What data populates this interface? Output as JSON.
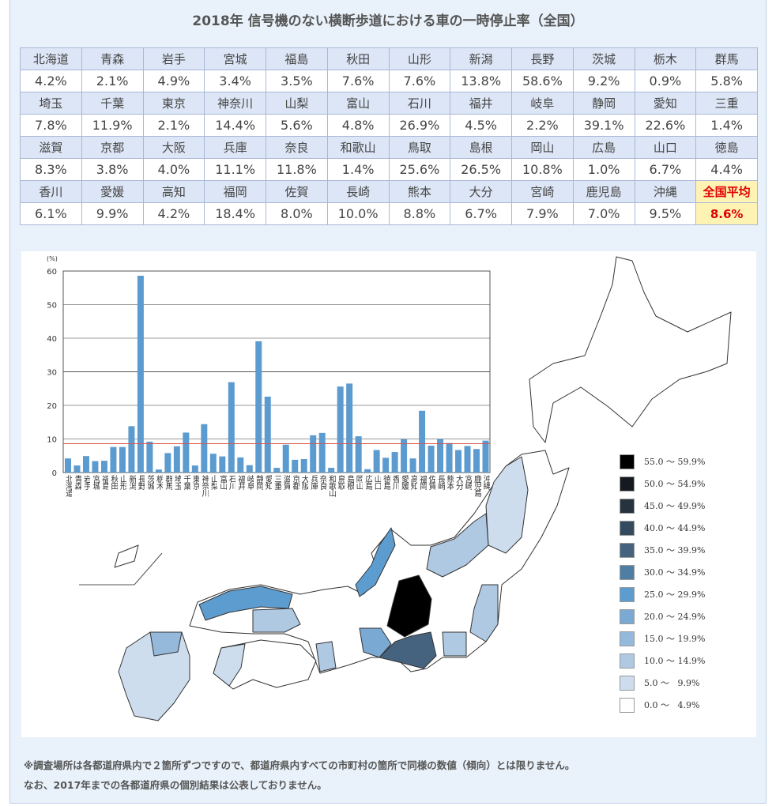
{
  "title": "2018年 信号機のない横断歩道における車の一時停止率（全国）",
  "prefectures": [
    {
      "name": "北海道",
      "value": "4.2%"
    },
    {
      "name": "青森",
      "value": "2.1%"
    },
    {
      "name": "岩手",
      "value": "4.9%"
    },
    {
      "name": "宮城",
      "value": "3.4%"
    },
    {
      "name": "福島",
      "value": "3.5%"
    },
    {
      "name": "秋田",
      "value": "7.6%"
    },
    {
      "name": "山形",
      "value": "7.6%"
    },
    {
      "name": "新潟",
      "value": "13.8%"
    },
    {
      "name": "長野",
      "value": "58.6%"
    },
    {
      "name": "茨城",
      "value": "9.2%"
    },
    {
      "name": "栃木",
      "value": "0.9%"
    },
    {
      "name": "群馬",
      "value": "5.8%"
    },
    {
      "name": "埼玉",
      "value": "7.8%"
    },
    {
      "name": "千葉",
      "value": "11.9%"
    },
    {
      "name": "東京",
      "value": "2.1%"
    },
    {
      "name": "神奈川",
      "value": "14.4%"
    },
    {
      "name": "山梨",
      "value": "5.6%"
    },
    {
      "name": "富山",
      "value": "4.8%"
    },
    {
      "name": "石川",
      "value": "26.9%"
    },
    {
      "name": "福井",
      "value": "4.5%"
    },
    {
      "name": "岐阜",
      "value": "2.2%"
    },
    {
      "name": "静岡",
      "value": "39.1%"
    },
    {
      "name": "愛知",
      "value": "22.6%"
    },
    {
      "name": "三重",
      "value": "1.4%"
    },
    {
      "name": "滋賀",
      "value": "8.3%"
    },
    {
      "name": "京都",
      "value": "3.8%"
    },
    {
      "name": "大阪",
      "value": "4.0%"
    },
    {
      "name": "兵庫",
      "value": "11.1%"
    },
    {
      "name": "奈良",
      "value": "11.8%"
    },
    {
      "name": "和歌山",
      "value": "1.4%"
    },
    {
      "name": "鳥取",
      "value": "25.6%"
    },
    {
      "name": "島根",
      "value": "26.5%"
    },
    {
      "name": "岡山",
      "value": "10.8%"
    },
    {
      "name": "広島",
      "value": "1.0%"
    },
    {
      "name": "山口",
      "value": "6.7%"
    },
    {
      "name": "徳島",
      "value": "4.4%"
    },
    {
      "name": "香川",
      "value": "6.1%"
    },
    {
      "name": "愛媛",
      "value": "9.9%"
    },
    {
      "name": "高知",
      "value": "4.2%"
    },
    {
      "name": "福岡",
      "value": "18.4%"
    },
    {
      "name": "佐賀",
      "value": "8.0%"
    },
    {
      "name": "長崎",
      "value": "10.0%"
    },
    {
      "name": "熊本",
      "value": "8.8%"
    },
    {
      "name": "大分",
      "value": "6.7%"
    },
    {
      "name": "宮崎",
      "value": "7.9%"
    },
    {
      "name": "鹿児島",
      "value": "7.0%"
    },
    {
      "name": "沖縄",
      "value": "9.5%"
    }
  ],
  "national_average": {
    "label": "全国平均",
    "value": "8.6%"
  },
  "chart_data": {
    "type": "bar",
    "title": "",
    "ylabel": "(%)",
    "xlabel": "",
    "ylim": [
      0,
      60
    ],
    "yticks": [
      "0",
      "10",
      "20",
      "30",
      "40",
      "50",
      "60"
    ],
    "categories": [
      "北海道",
      "青森",
      "岩手",
      "宮城",
      "福島",
      "秋田",
      "山形",
      "新潟",
      "長野",
      "茨城",
      "栃木",
      "群馬",
      "埼玉",
      "千葉",
      "東京",
      "神奈川",
      "山梨",
      "富山",
      "石川",
      "福井",
      "岐阜",
      "静岡",
      "愛知",
      "三重",
      "滋賀",
      "京都",
      "大阪",
      "兵庫",
      "奈良",
      "和歌山",
      "鳥取",
      "島根",
      "岡山",
      "広島",
      "山口",
      "徳島",
      "香川",
      "愛媛",
      "高知",
      "福岡",
      "佐賀",
      "長崎",
      "熊本",
      "大分",
      "宮崎",
      "鹿児島",
      "沖縄"
    ],
    "values": [
      4.2,
      2.1,
      4.9,
      3.4,
      3.5,
      7.6,
      7.6,
      13.8,
      58.6,
      9.2,
      0.9,
      5.8,
      7.8,
      11.9,
      2.1,
      14.4,
      5.6,
      4.8,
      26.9,
      4.5,
      2.2,
      39.1,
      22.6,
      1.4,
      8.3,
      3.8,
      4.0,
      11.1,
      11.8,
      1.4,
      25.6,
      26.5,
      10.8,
      1.0,
      6.7,
      4.4,
      6.1,
      9.9,
      4.2,
      18.4,
      8.0,
      10.0,
      8.8,
      6.7,
      7.9,
      7.0,
      9.5
    ],
    "reference_line": 8.6,
    "bar_color": "#5b9bd0",
    "reference_color": "#d9534f"
  },
  "legend": [
    {
      "label": "55.0 ～ 59.9%",
      "color": "#000000"
    },
    {
      "label": "50.0 ～ 54.9%",
      "color": "#151a20"
    },
    {
      "label": "45.0 ～ 49.9%",
      "color": "#26333f"
    },
    {
      "label": "40.0 ～ 44.9%",
      "color": "#344a5e"
    },
    {
      "label": "35.0 ～ 39.9%",
      "color": "#45637f"
    },
    {
      "label": "30.0 ～ 34.9%",
      "color": "#4f7ea4"
    },
    {
      "label": "25.0 ～ 29.9%",
      "color": "#5c9ccf"
    },
    {
      "label": "20.0 ～ 24.9%",
      "color": "#7aa9d3"
    },
    {
      "label": "15.0 ～ 19.9%",
      "color": "#95b9db"
    },
    {
      "label": "10.0 ～ 14.9%",
      "color": "#b0c9e3"
    },
    {
      "label": "5.0 ～   9.9%",
      "color": "#cdddee"
    },
    {
      "label": "0.0 ～   4.9%",
      "color": "#ffffff"
    }
  ],
  "notes": [
    "※調査場所は各都道府県内で２箇所ずつですので、都道府県内すべての市町村の箇所で同様の数値（傾向）とは限りません。",
    "なお、2017年までの各都道府県の個別結果は公表しておりません。"
  ]
}
